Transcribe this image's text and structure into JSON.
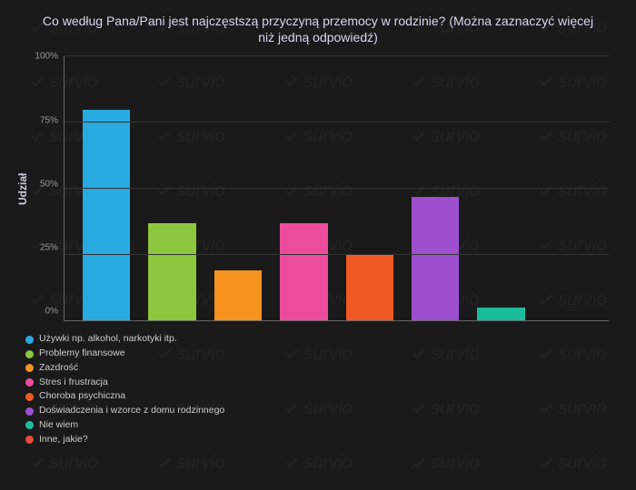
{
  "chart": {
    "type": "bar",
    "title": "Co według Pana/Pani jest najczęstszą przyczyną przemocy w rodzinie? (Można zaznaczyć więcej niż jedną odpowiedź)",
    "ylabel": "Udział",
    "ylim": [
      0,
      100
    ],
    "yticks": [
      100,
      75,
      50,
      25,
      0
    ],
    "ytick_suffix": "%",
    "background_color": "#1a1a1a",
    "grid_color": "#333333",
    "axis_color": "#666666",
    "title_color": "#d8d8f0",
    "label_color": "#cccccc",
    "categories": [
      {
        "label": "Używki np. alkohol, narkotyki itp.",
        "value": 80,
        "color": "#29abe2"
      },
      {
        "label": "Problemy finansowe",
        "value": 37,
        "color": "#8cc63f"
      },
      {
        "label": "Zazdrość",
        "value": 19,
        "color": "#f7931e"
      },
      {
        "label": "Stres i frustracja",
        "value": 37,
        "color": "#ec4d9b"
      },
      {
        "label": "Choroba psychiczna",
        "value": 25,
        "color": "#f15a24"
      },
      {
        "label": "Doświadczenia i wzorce z domu rodzinnego",
        "value": 47,
        "color": "#9e4fd0"
      },
      {
        "label": "Nie wiem",
        "value": 5,
        "color": "#1bbc9b"
      },
      {
        "label": "Inne, jakie?",
        "value": 0,
        "color": "#e74c3c"
      }
    ],
    "watermark_text": "survio"
  }
}
